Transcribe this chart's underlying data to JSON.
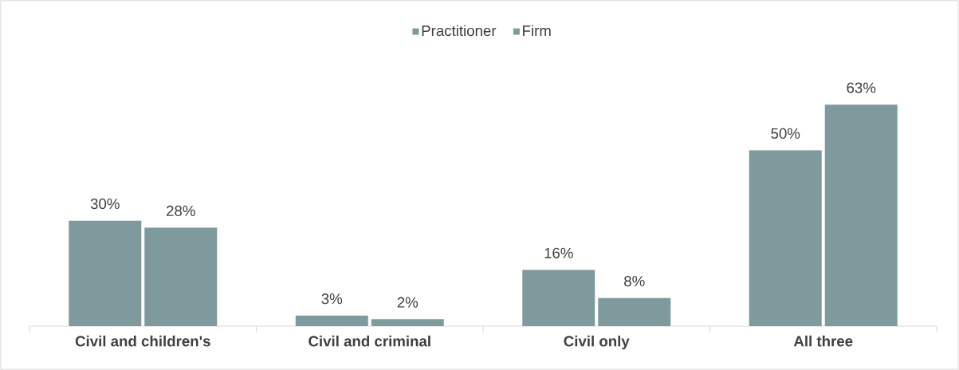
{
  "chart_data": {
    "type": "bar",
    "categories": [
      "Civil and children's",
      "Civil and criminal",
      "Civil only",
      "All three"
    ],
    "series": [
      {
        "name": "Practitioner",
        "color": "#7f9a9d",
        "values": [
          30,
          3,
          16,
          50
        ],
        "value_labels": [
          "30%",
          "3%",
          "16%",
          "50%"
        ]
      },
      {
        "name": "Firm",
        "color": "#7f9a9d",
        "values": [
          28,
          2,
          8,
          63
        ],
        "value_labels": [
          "28%",
          "2%",
          "8%",
          "63%"
        ]
      }
    ],
    "legend": "top"
  }
}
